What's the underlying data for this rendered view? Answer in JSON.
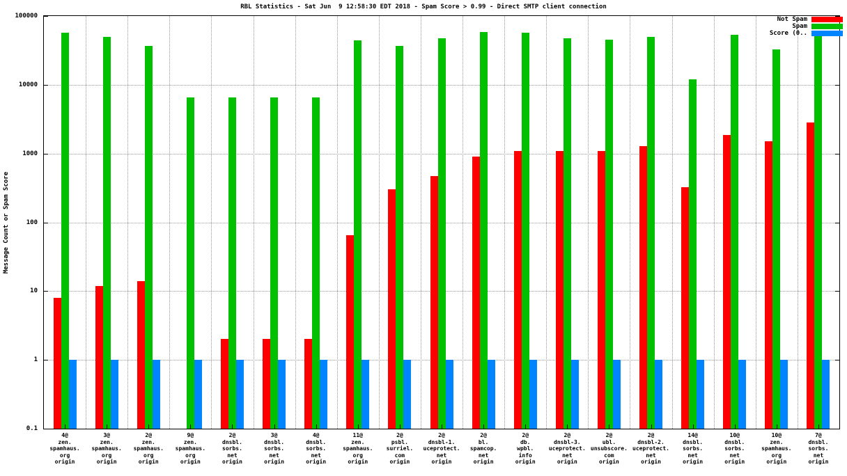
{
  "page": {
    "background": "#ffffff"
  },
  "chart_data": {
    "type": "bar",
    "title": "RBL Statistics - Sat Jun  9 12:58:30 EDT 2018 - Spam Score > 0.99 - Direct SMTP client connection",
    "ylabel": "Message Count or Spam Score",
    "xlabel": "",
    "y_scale": "log",
    "ylim": [
      0.1,
      100000
    ],
    "ytick_labels": [
      "100000",
      "10000",
      "1000",
      "100",
      "10",
      "1",
      "0.1"
    ],
    "grid": true,
    "legend_position": "top-right",
    "legend": [
      {
        "label": "Not Spam",
        "color": "#ff0000"
      },
      {
        "label": "Spam",
        "color": "#00c000"
      },
      {
        "label": "Score (0..",
        "color": "#0084ff"
      }
    ],
    "categories": [
      "4@\nzen.\nspamhaus.\norg\norigin",
      "3@\nzen.\nspamhaus.\norg\norigin",
      "2@\nzen.\nspamhaus.\norg\norigin",
      "9@\nzen.\nspamhaus.\norg\norigin",
      "2@\ndnsbl.\nsorbs.\nnet\norigin",
      "3@\ndnsbl.\nsorbs.\nnet\norigin",
      "4@\ndnsbl.\nsorbs.\nnet\norigin",
      "11@\nzen.\nspamhaus.\norg\norigin",
      "2@\npsbl.\nsurriel.\ncom\norigin",
      "2@\ndnsbl-1.\nuceprotect.\nnet\norigin",
      "2@\nbl.\nspamcop.\nnet\norigin",
      "2@\ndb.\nwpbl.\ninfo\norigin",
      "2@\ndnsbl-3.\nuceprotect.\nnet\norigin",
      "2@\nubl.\nunsubscore.\ncom\norigin",
      "2@\ndnsbl-2.\nuceprotect.\nnet\norigin",
      "14@\ndnsbl.\nsorbs.\nnet\norigin",
      "10@\ndnsbl.\nsorbs.\nnet\norigin",
      "10@\nzen.\nspamhaus.\norg\norigin",
      "7@\ndnsbl.\nsorbs.\nnet\norigin"
    ],
    "series": [
      {
        "name": "Not Spam",
        "color": "#ff0000",
        "values": [
          8,
          12,
          14,
          null,
          2,
          2,
          2,
          65,
          300,
          470,
          900,
          1080,
          1080,
          1100,
          1270,
          325,
          1850,
          1500,
          2800
        ]
      },
      {
        "name": "Spam",
        "color": "#00c000",
        "values": [
          57000,
          50000,
          37000,
          6500,
          6500,
          6500,
          6500,
          44000,
          37000,
          47000,
          58000,
          57000,
          47000,
          45000,
          50000,
          12000,
          53000,
          33000,
          57000
        ]
      },
      {
        "name": "Score (0..1)",
        "color": "#0084ff",
        "values": [
          1,
          1,
          1,
          1,
          1,
          1,
          1,
          1,
          1,
          1,
          1,
          1,
          1,
          1,
          1,
          1,
          1,
          1,
          1
        ]
      }
    ]
  }
}
